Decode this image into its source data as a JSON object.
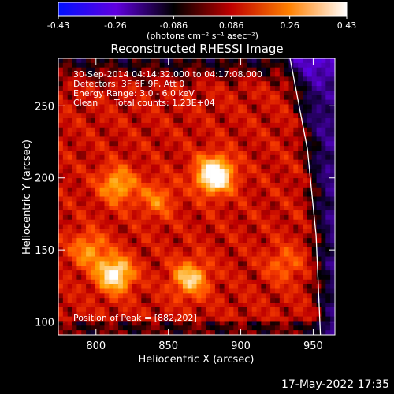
{
  "chart_data": {
    "type": "heatmap",
    "title": "Reconstructed RHESSI Image",
    "xlabel": "Heliocentric X (arcsec)",
    "ylabel": "Heliocentric Y (arcsec)",
    "xlim": [
      774,
      965
    ],
    "ylim": [
      91,
      283
    ],
    "xticks": [
      800,
      850,
      900,
      950
    ],
    "yticks": [
      100,
      150,
      200,
      250
    ],
    "colorbar": {
      "min": -0.43,
      "max": 0.43,
      "ticks": [
        "-0.43",
        "-0.26",
        "-0.086",
        "0.086",
        "0.26",
        "0.43"
      ],
      "unit_label": "(photons cm⁻² s⁻¹ asec⁻²)",
      "colors": [
        "#0010ff",
        "#6000e0",
        "#000000",
        "#c00000",
        "#ff8000",
        "#ffffff"
      ]
    },
    "annotations": [
      "30-Sep-2014 04:14:32.000 to 04:17:08.000",
      "Detectors: 3F 6F 9F, Att 0",
      "Energy Range: 3.0 - 6.0 keV",
      "Clean",
      "Total counts: 1.23E+04"
    ],
    "peak_label": "Position of Peak = [882,202]",
    "peak": [
      882,
      202
    ],
    "sources": [
      {
        "x": 882,
        "y": 202,
        "intensity": 0.43
      },
      {
        "x": 813,
        "y": 133,
        "intensity": 0.34
      },
      {
        "x": 865,
        "y": 130,
        "intensity": 0.26
      },
      {
        "x": 815,
        "y": 195,
        "intensity": 0.22
      },
      {
        "x": 842,
        "y": 185,
        "intensity": 0.14
      },
      {
        "x": 795,
        "y": 150,
        "intensity": 0.18
      },
      {
        "x": 930,
        "y": 140,
        "intensity": 0.12
      }
    ],
    "limb_curve": [
      [
        934,
        283
      ],
      [
        946,
        220
      ],
      [
        952,
        160
      ],
      [
        955,
        91
      ]
    ]
  },
  "footer_timestamp": "17-May-2022 17:35"
}
